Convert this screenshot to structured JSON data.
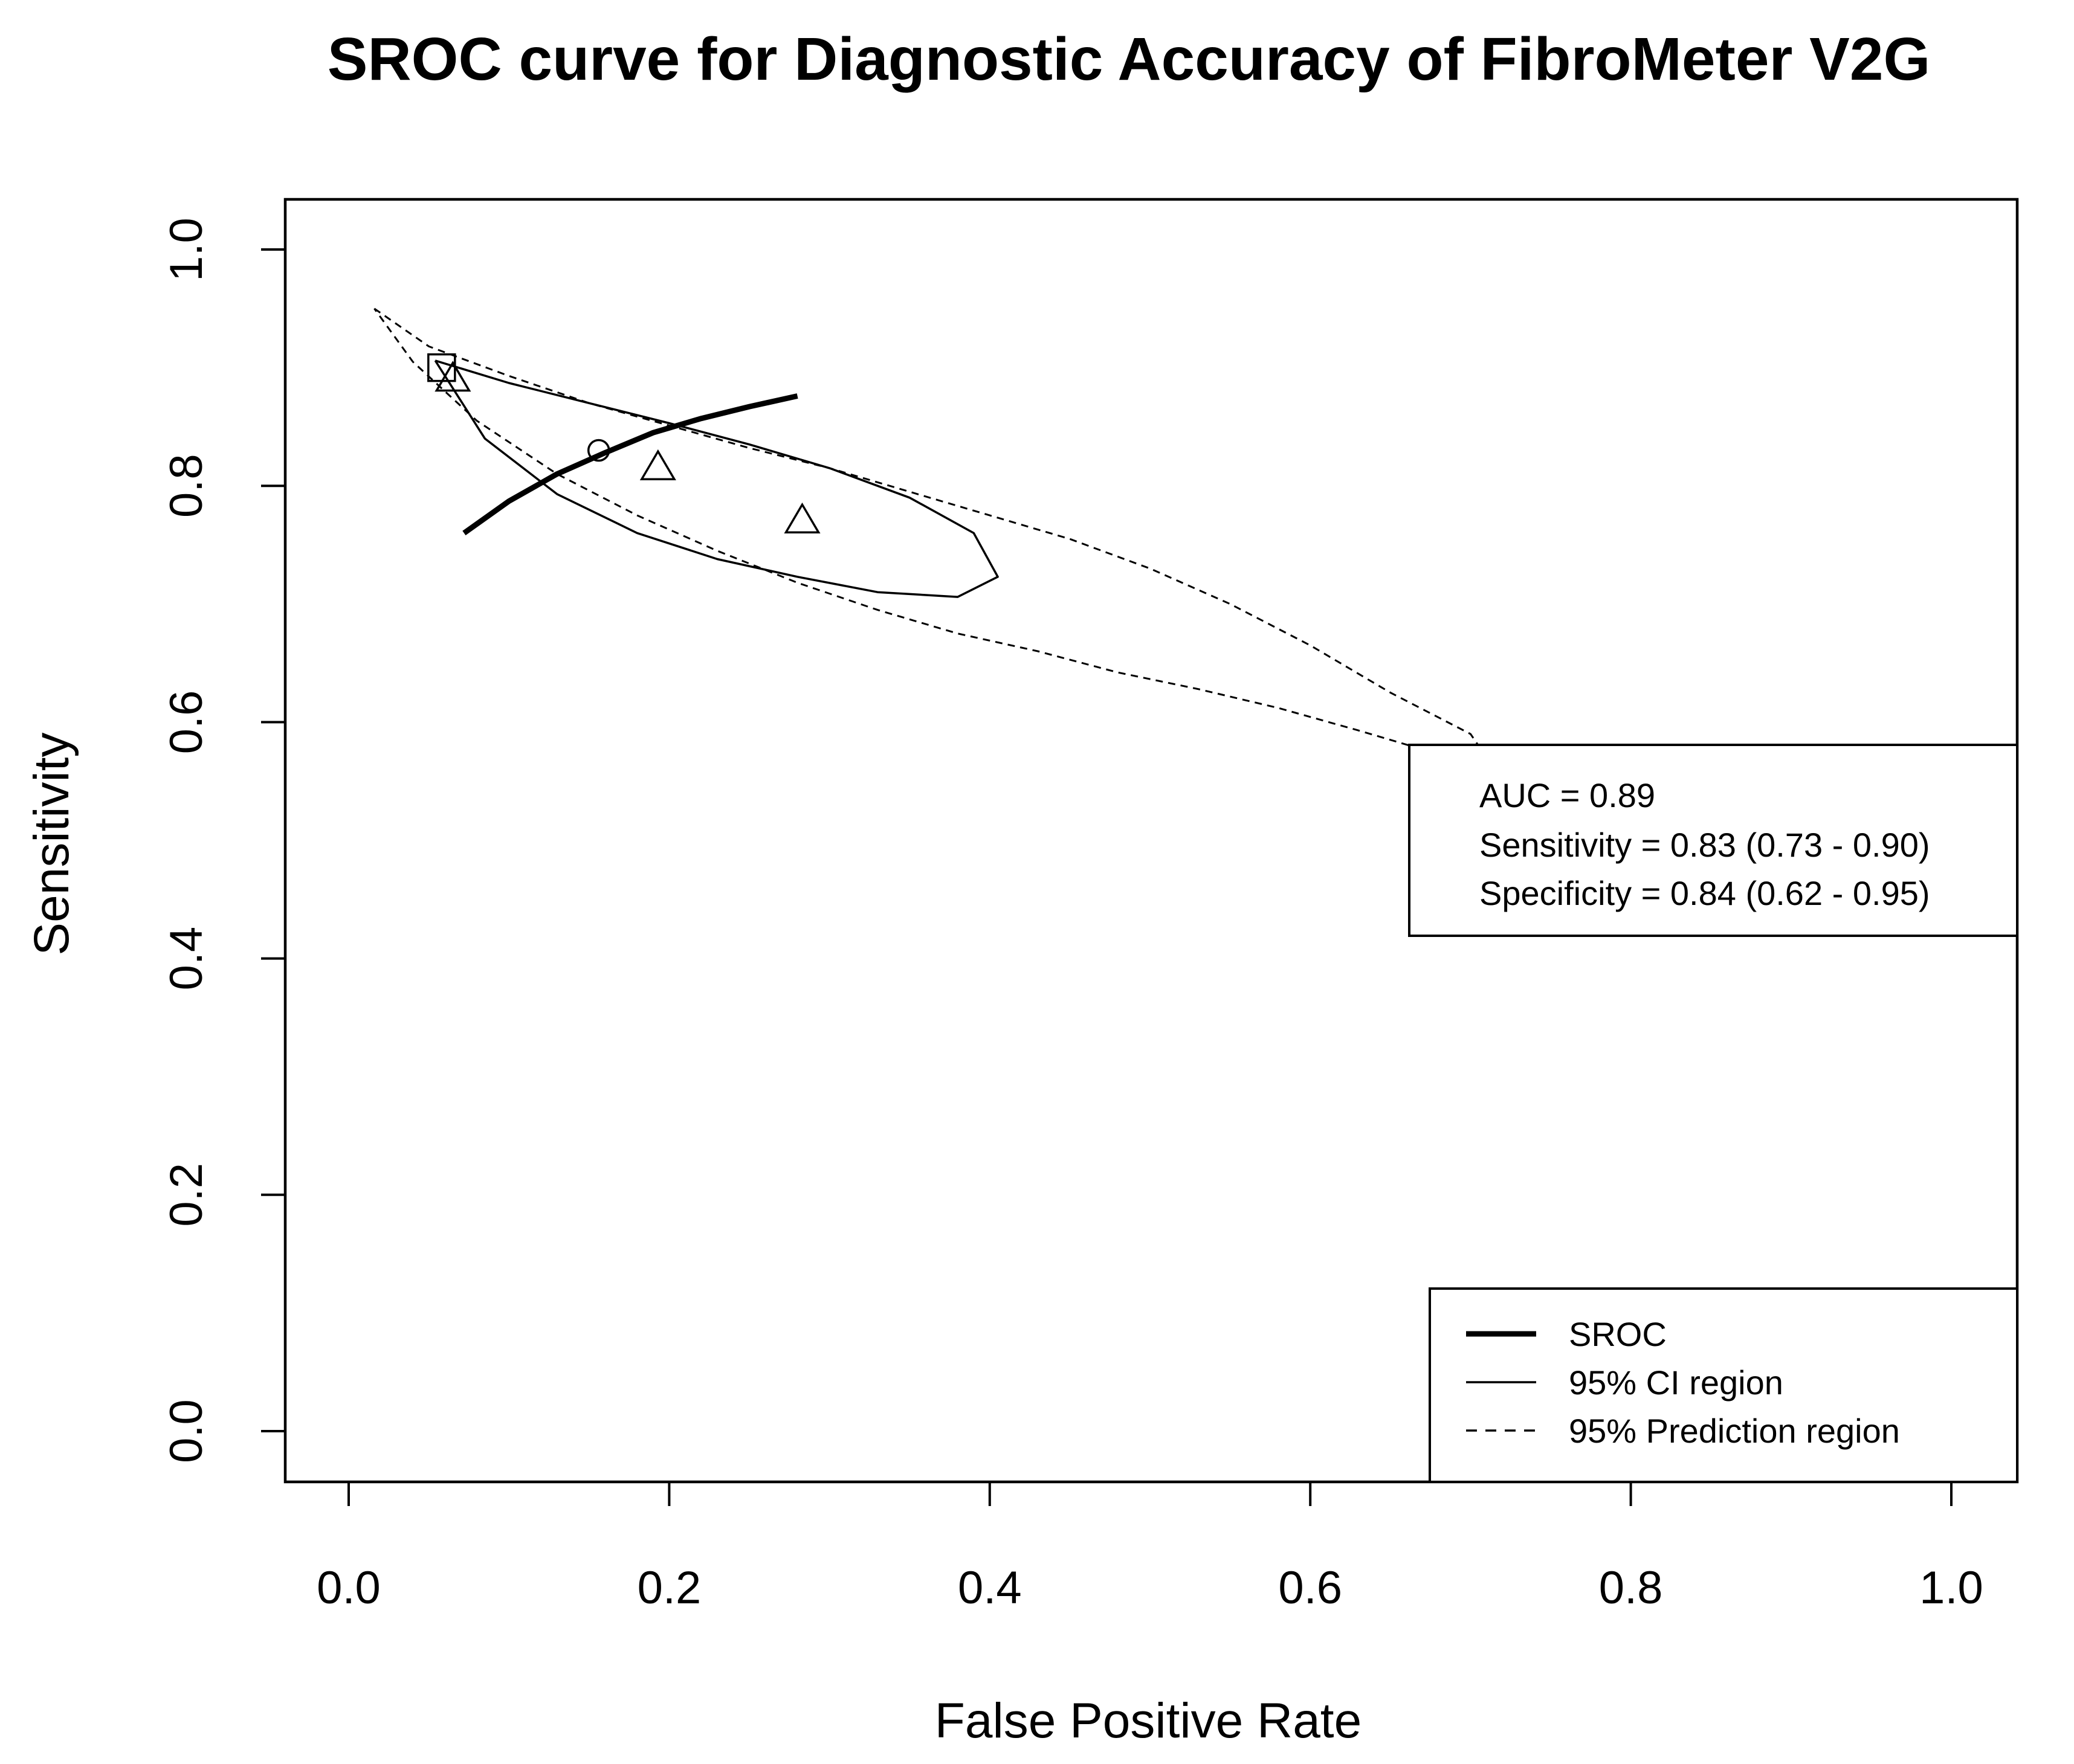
{
  "chart_data": {
    "type": "scatter",
    "title": "SROC curve for Diagnostic Accuracy of FibroMeter V2G",
    "xlabel": "False Positive Rate",
    "ylabel": "Sensitivity",
    "xlim": [
      0.0,
      1.0
    ],
    "ylim": [
      0.0,
      1.0
    ],
    "xticks": [
      "0.0",
      "0.2",
      "0.4",
      "0.6",
      "0.8",
      "1.0"
    ],
    "yticks": [
      "0.0",
      "0.2",
      "0.4",
      "0.6",
      "0.8",
      "1.0"
    ],
    "grid": false,
    "sroc_curve": {
      "name": "SROC",
      "x": [
        0.072,
        0.1,
        0.13,
        0.16,
        0.19,
        0.22,
        0.25,
        0.28
      ],
      "y": [
        0.76,
        0.787,
        0.81,
        0.828,
        0.845,
        0.857,
        0.867,
        0.876
      ]
    },
    "summary_point": {
      "fpr": 0.156,
      "sensitivity": 0.83
    },
    "studies": [
      {
        "marker": "square",
        "fpr": 0.058,
        "sensitivity": 0.9
      },
      {
        "marker": "triangle",
        "fpr": 0.065,
        "sensitivity": 0.89
      },
      {
        "marker": "triangle",
        "fpr": 0.193,
        "sensitivity": 0.815
      },
      {
        "marker": "triangle",
        "fpr": 0.283,
        "sensitivity": 0.77
      }
    ],
    "confidence_region": {
      "name": "95% CI region",
      "x": [
        0.054,
        0.1,
        0.15,
        0.2,
        0.25,
        0.3,
        0.35,
        0.39,
        0.405,
        0.38,
        0.33,
        0.28,
        0.23,
        0.18,
        0.13,
        0.085,
        0.054
      ],
      "y": [
        0.906,
        0.887,
        0.87,
        0.853,
        0.835,
        0.815,
        0.79,
        0.76,
        0.723,
        0.706,
        0.71,
        0.723,
        0.738,
        0.76,
        0.793,
        0.84,
        0.906
      ]
    },
    "prediction_region": {
      "name": "95% Prediction region",
      "x": [
        0.016,
        0.05,
        0.1,
        0.15,
        0.2,
        0.25,
        0.3,
        0.35,
        0.4,
        0.45,
        0.5,
        0.55,
        0.6,
        0.65,
        0.7,
        0.705,
        0.68,
        0.63,
        0.58,
        0.53,
        0.48,
        0.43,
        0.38,
        0.33,
        0.28,
        0.23,
        0.18,
        0.13,
        0.08,
        0.04,
        0.016
      ],
      "y": [
        0.95,
        0.918,
        0.893,
        0.87,
        0.851,
        0.832,
        0.815,
        0.795,
        0.775,
        0.755,
        0.73,
        0.7,
        0.665,
        0.625,
        0.59,
        0.58,
        0.573,
        0.593,
        0.612,
        0.628,
        0.642,
        0.66,
        0.675,
        0.695,
        0.718,
        0.745,
        0.775,
        0.81,
        0.855,
        0.905,
        0.95
      ]
    },
    "stats_box": {
      "auc": "AUC = 0.89",
      "sensitivity": "Sensitivity = 0.83 (0.73 - 0.90)",
      "specificity": "Specificity = 0.84 (0.62 - 0.95)"
    },
    "legend": {
      "placement": "bottom-right",
      "entries": [
        {
          "label": "SROC",
          "style": "thick-solid"
        },
        {
          "label": "95% CI region",
          "style": "solid"
        },
        {
          "label": "95% Prediction region",
          "style": "dashed"
        }
      ]
    }
  }
}
